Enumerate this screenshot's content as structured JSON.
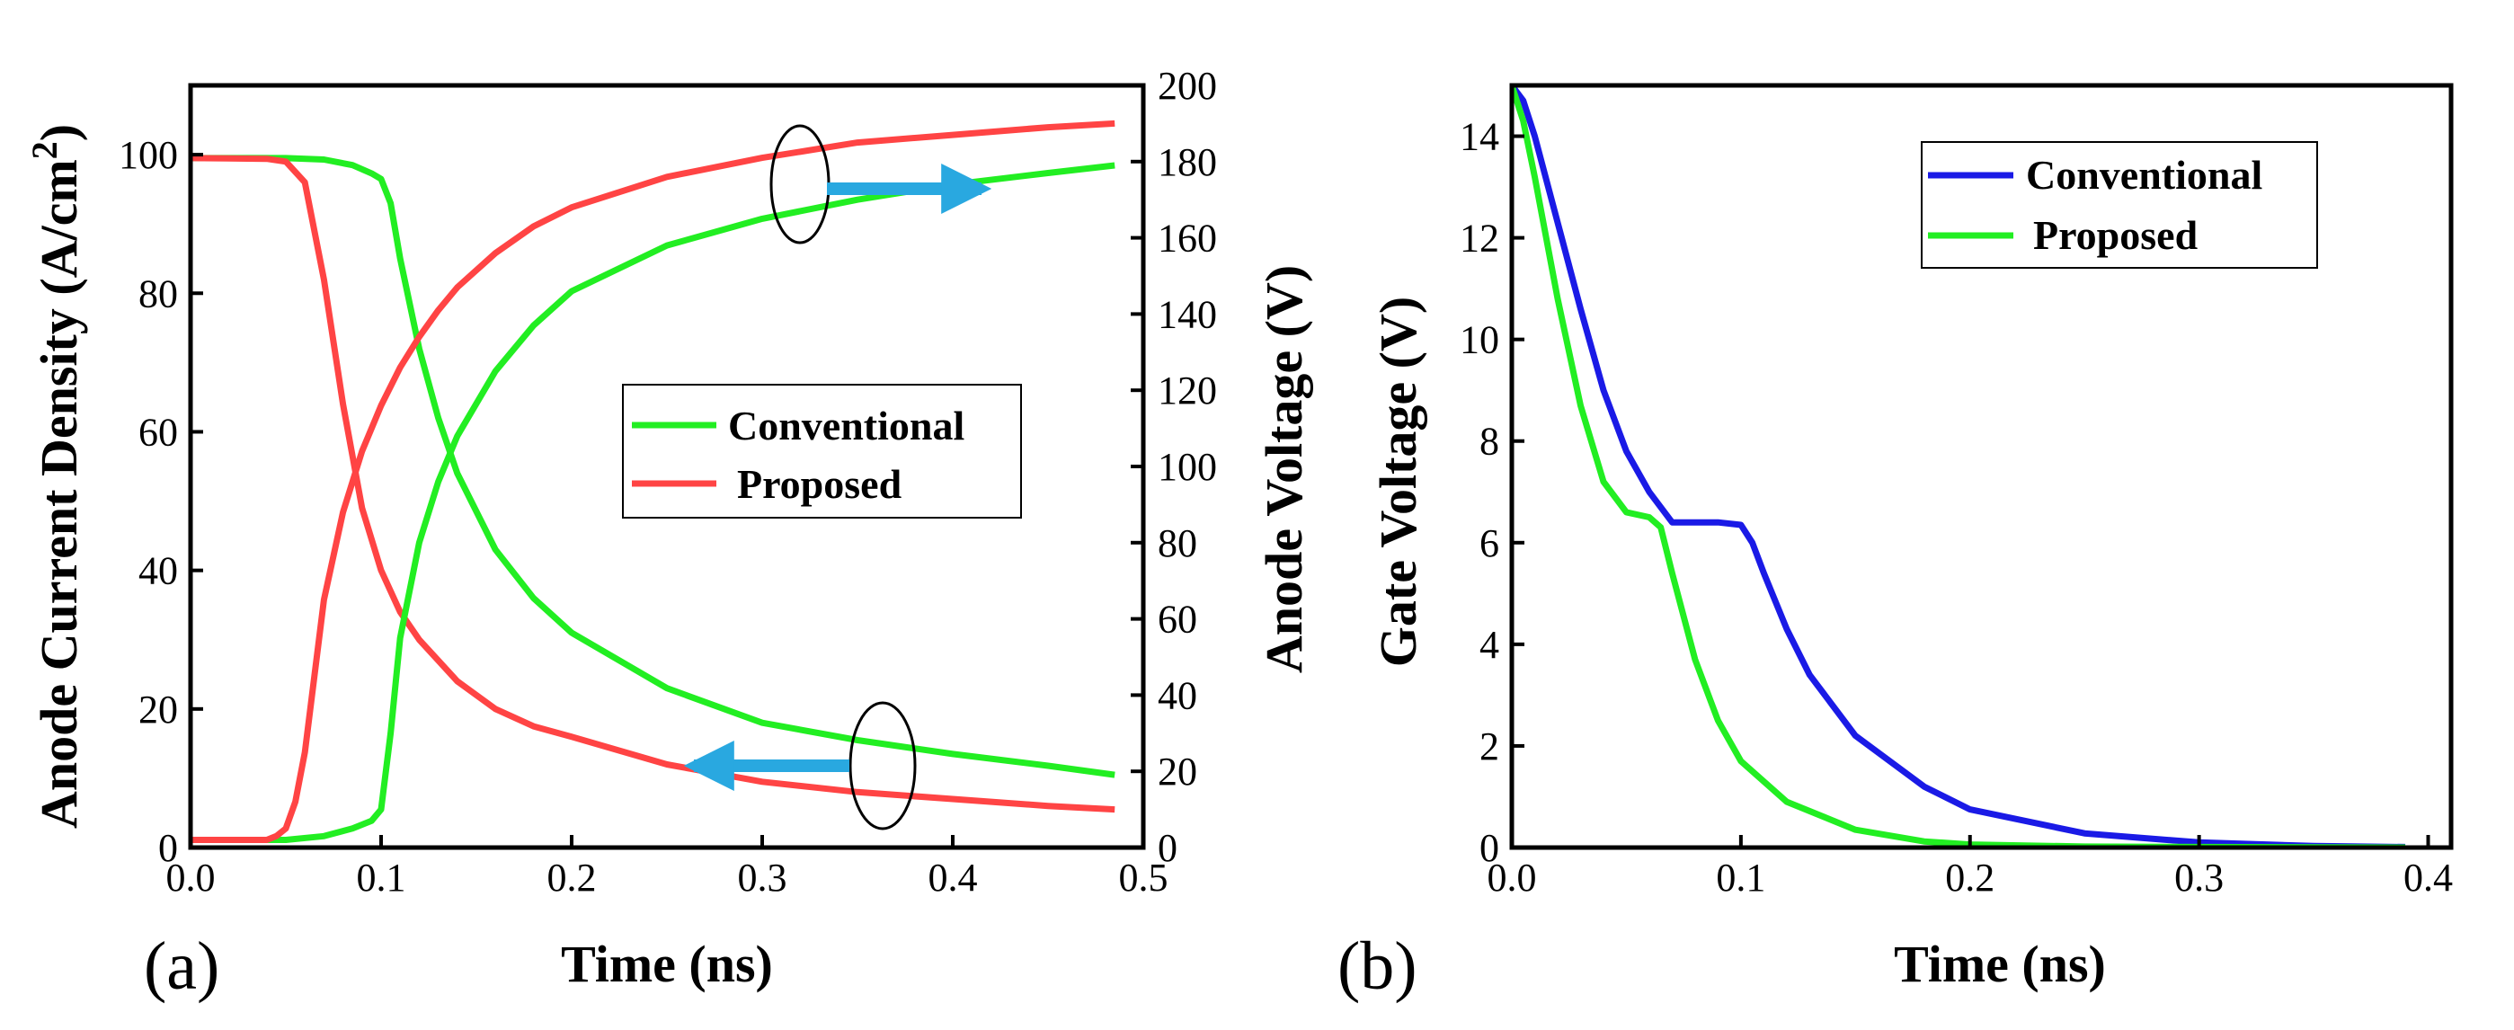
{
  "chart_data": [
    {
      "type": "line",
      "panel_label": "(a)",
      "xlabel": "Time (ns)",
      "ylabel_left": "Anode Current Density (A/cm",
      "ylabel_left_sup": "2",
      "ylabel_left_close": ")",
      "ylabel_right": "Anode Voltage (V)",
      "xlim": [
        0.0,
        0.5
      ],
      "ylim_left": [
        0,
        110
      ],
      "ylim_right": [
        0,
        200
      ],
      "xticks": [
        "0.0",
        "0.1",
        "0.2",
        "0.3",
        "0.4",
        "0.5"
      ],
      "yticks_left": [
        "0",
        "20",
        "40",
        "60",
        "80",
        "100"
      ],
      "yticks_right": [
        "0",
        "20",
        "40",
        "60",
        "80",
        "100",
        "120",
        "140",
        "160",
        "180",
        "200"
      ],
      "legend_position": "center-right",
      "series": [
        {
          "name": "Conventional",
          "color": "#22ee22",
          "axis": "left",
          "quantity": "current density",
          "x": [
            0,
            0.05,
            0.07,
            0.085,
            0.095,
            0.1,
            0.105,
            0.11,
            0.12,
            0.13,
            0.14,
            0.16,
            0.18,
            0.2,
            0.25,
            0.3,
            0.35,
            0.4,
            0.45,
            0.485
          ],
          "y": [
            99.5,
            99.5,
            99.3,
            98.5,
            97.3,
            96.5,
            93,
            85,
            72,
            62,
            54,
            43,
            36,
            31,
            23,
            18,
            15.5,
            13.5,
            11.8,
            10.5
          ]
        },
        {
          "name": "Proposed",
          "color": "#ff4444",
          "axis": "left",
          "quantity": "current density",
          "x": [
            0,
            0.04,
            0.05,
            0.06,
            0.07,
            0.08,
            0.09,
            0.1,
            0.11,
            0.12,
            0.14,
            0.16,
            0.18,
            0.2,
            0.25,
            0.3,
            0.35,
            0.4,
            0.45,
            0.485
          ],
          "y": [
            99.5,
            99.4,
            99,
            96,
            82,
            64,
            49,
            40,
            34,
            30,
            24,
            20,
            17.5,
            16,
            12,
            9.5,
            8,
            7,
            6,
            5.5
          ]
        },
        {
          "name": "Conventional",
          "color": "#22ee22",
          "axis": "right",
          "quantity": "voltage",
          "x": [
            0,
            0.05,
            0.07,
            0.085,
            0.095,
            0.1,
            0.105,
            0.11,
            0.12,
            0.13,
            0.14,
            0.16,
            0.18,
            0.2,
            0.25,
            0.3,
            0.35,
            0.4,
            0.45,
            0.485
          ],
          "y": [
            2,
            2,
            3,
            5,
            7,
            10,
            30,
            55,
            80,
            96,
            108,
            125,
            137,
            146,
            158,
            165,
            170,
            174,
            177,
            179
          ]
        },
        {
          "name": "Proposed",
          "color": "#ff4444",
          "axis": "right",
          "quantity": "voltage",
          "x": [
            0,
            0.04,
            0.045,
            0.05,
            0.055,
            0.06,
            0.065,
            0.07,
            0.08,
            0.09,
            0.1,
            0.11,
            0.12,
            0.13,
            0.14,
            0.16,
            0.18,
            0.2,
            0.25,
            0.3,
            0.35,
            0.4,
            0.45,
            0.485
          ],
          "y": [
            2,
            2,
            3,
            5,
            12,
            25,
            45,
            65,
            88,
            104,
            116,
            126,
            134,
            141,
            147,
            156,
            163,
            168,
            176,
            181,
            185,
            187,
            189,
            190
          ]
        }
      ]
    },
    {
      "type": "line",
      "panel_label": "(b)",
      "xlabel": "Time (ns)",
      "ylabel": "Gate Voltage (V)",
      "xlim": [
        0.0,
        0.4
      ],
      "ylim": [
        0,
        15
      ],
      "xticks": [
        "0.0",
        "0.1",
        "0.2",
        "0.3",
        "0.4"
      ],
      "yticks": [
        "0",
        "2",
        "4",
        "6",
        "8",
        "10",
        "12",
        "14"
      ],
      "legend_position": "top-right",
      "series": [
        {
          "name": "Conventional",
          "color": "#1a1ae6",
          "x": [
            0,
            0.005,
            0.01,
            0.02,
            0.03,
            0.04,
            0.05,
            0.06,
            0.07,
            0.08,
            0.09,
            0.1,
            0.105,
            0.11,
            0.12,
            0.13,
            0.15,
            0.18,
            0.2,
            0.25,
            0.3,
            0.35,
            0.39
          ],
          "y": [
            15,
            14.7,
            14,
            12.3,
            10.6,
            9.0,
            7.8,
            7.0,
            6.4,
            6.4,
            6.4,
            6.35,
            6.0,
            5.4,
            4.3,
            3.4,
            2.2,
            1.2,
            0.75,
            0.28,
            0.1,
            0.03,
            0.01
          ]
        },
        {
          "name": "Proposed",
          "color": "#22ee22",
          "x": [
            0,
            0.005,
            0.01,
            0.02,
            0.03,
            0.04,
            0.05,
            0.06,
            0.065,
            0.07,
            0.08,
            0.09,
            0.1,
            0.12,
            0.15,
            0.18,
            0.2,
            0.25,
            0.3,
            0.35,
            0.39
          ],
          "y": [
            15,
            14.3,
            13.2,
            10.8,
            8.7,
            7.2,
            6.6,
            6.5,
            6.3,
            5.4,
            3.7,
            2.5,
            1.7,
            0.9,
            0.35,
            0.12,
            0.06,
            0.02,
            0.01,
            0.005,
            0.0
          ]
        }
      ]
    }
  ]
}
